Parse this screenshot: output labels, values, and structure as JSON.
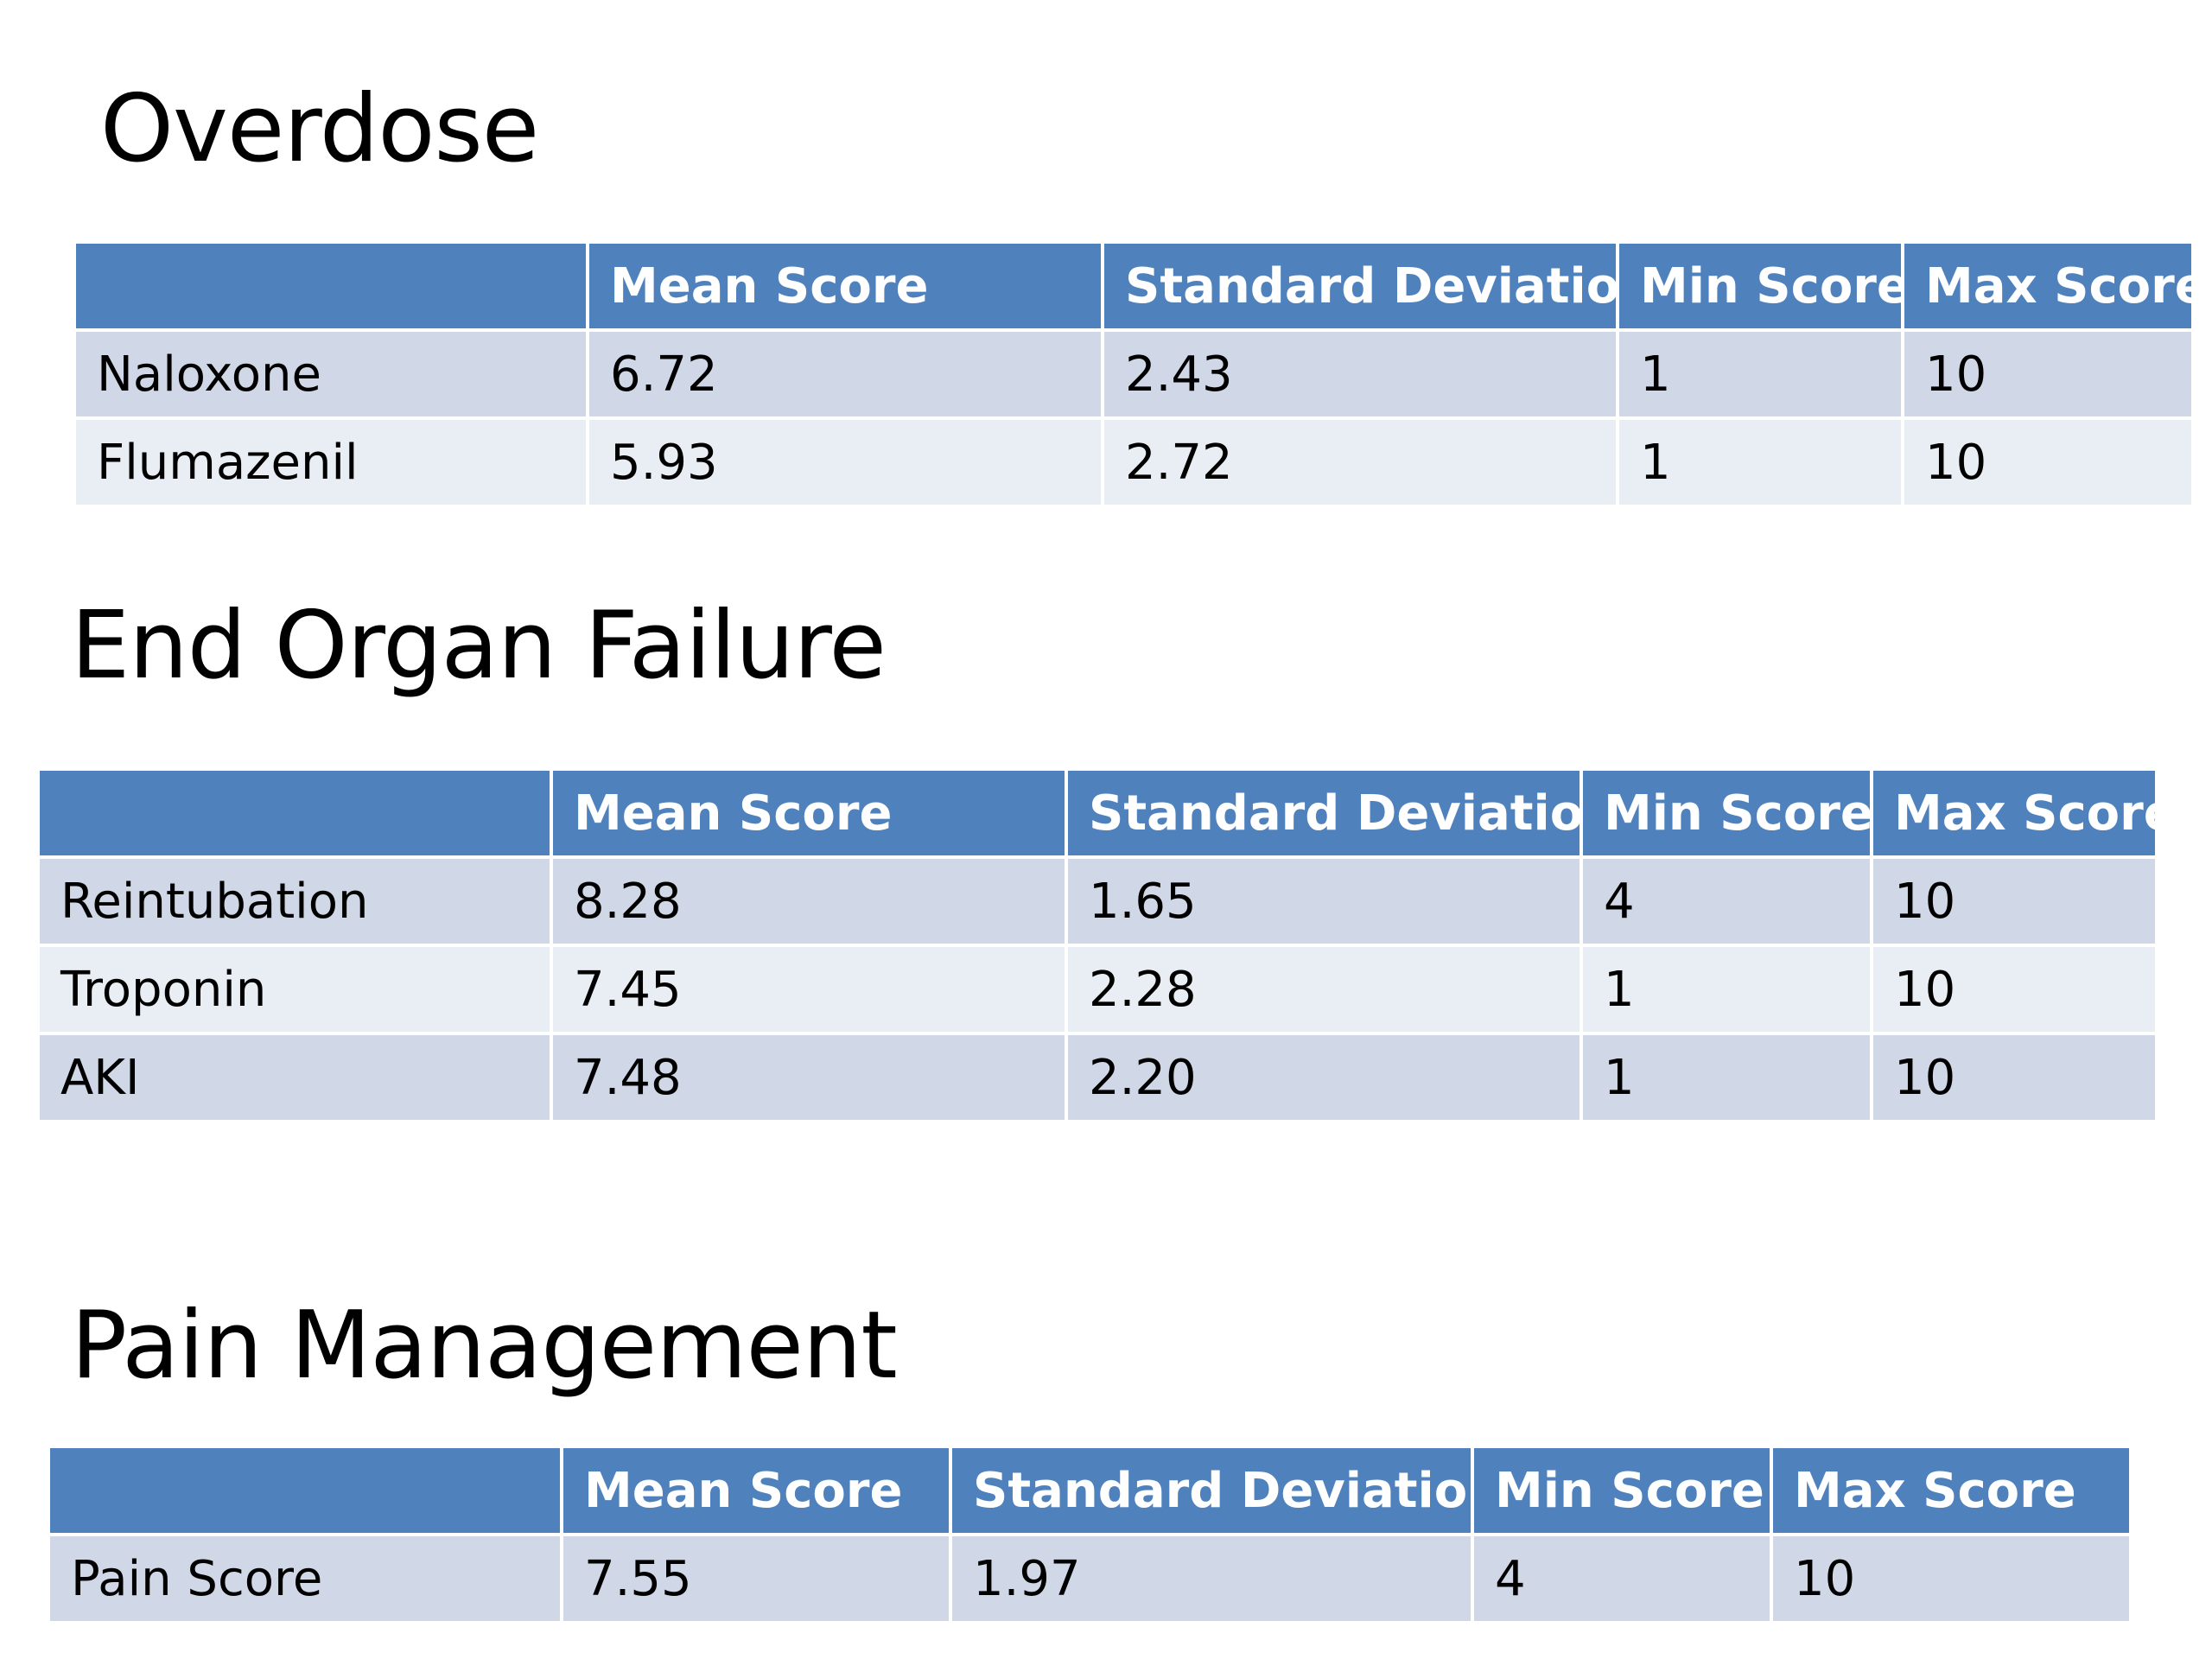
{
  "sections": [
    {
      "title": "Overdose",
      "headers": [
        "",
        "Mean Score",
        "Standard Deviation",
        "Min Score",
        "Max Score"
      ],
      "rows": [
        [
          "Naloxone",
          "6.72",
          "2.43",
          "1",
          "10"
        ],
        [
          "Flumazenil",
          "5.93",
          "2.72",
          "1",
          "10"
        ]
      ]
    },
    {
      "title": "End Organ Failure",
      "headers": [
        "",
        "Mean Score",
        "Standard Deviation",
        "Min Score",
        "Max Score"
      ],
      "rows": [
        [
          "Reintubation",
          "8.28",
          "1.65",
          "4",
          "10"
        ],
        [
          "Troponin",
          "7.45",
          "2.28",
          "1",
          "10"
        ],
        [
          "AKI",
          "7.48",
          "2.20",
          "1",
          "10"
        ]
      ]
    },
    {
      "title": "Pain Management",
      "headers": [
        "",
        "Mean Score",
        "Standard Deviation",
        "Min Score",
        "Max Score"
      ],
      "rows": [
        [
          "Pain Score",
          "7.55",
          "1.97",
          "4",
          "10"
        ]
      ]
    }
  ],
  "colors": {
    "header_fill": "#4f81bd",
    "header_text": "#ffffff",
    "row_band_dark": "#d0d8e8",
    "row_band_light": "#e9edf4"
  }
}
